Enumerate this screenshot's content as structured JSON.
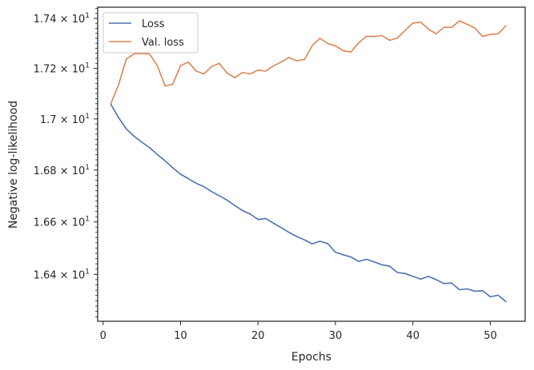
{
  "chart_data": {
    "type": "line",
    "xlabel": "Epochs",
    "ylabel": "Negative log-likelihood",
    "xlim": [
      -0.7,
      54.5
    ],
    "ylim": [
      16.223,
      17.445
    ],
    "y_scale": "log",
    "grid": false,
    "legend_position": "upper left",
    "x_ticks": [
      0,
      10,
      20,
      30,
      40,
      50
    ],
    "x_tick_labels": [
      "0",
      "10",
      "20",
      "30",
      "40",
      "50"
    ],
    "y_ticks": [
      16.4,
      16.6,
      16.8,
      17.0,
      17.2,
      17.4
    ],
    "y_tick_labels": [
      {
        "mantissa": "1.64",
        "exp": "1"
      },
      {
        "mantissa": "1.66",
        "exp": "1"
      },
      {
        "mantissa": "1.68",
        "exp": "1"
      },
      {
        "mantissa": "1.7",
        "exp": "1"
      },
      {
        "mantissa": "1.72",
        "exp": "1"
      },
      {
        "mantissa": "1.74",
        "exp": "1"
      }
    ],
    "x": [
      1,
      2,
      3,
      4,
      5,
      6,
      7,
      8,
      9,
      10,
      11,
      12,
      13,
      14,
      15,
      16,
      17,
      18,
      19,
      20,
      21,
      22,
      23,
      24,
      25,
      26,
      27,
      28,
      29,
      30,
      31,
      32,
      33,
      34,
      35,
      36,
      37,
      38,
      39,
      40,
      41,
      42,
      43,
      44,
      45,
      46,
      47,
      48,
      49,
      50,
      51,
      52
    ],
    "series": [
      {
        "name": "Loss",
        "color": "#4c72b0",
        "values": [
          17.058,
          17.005,
          16.961,
          16.932,
          16.909,
          16.888,
          16.861,
          16.836,
          16.809,
          16.784,
          16.767,
          16.749,
          16.736,
          16.717,
          16.701,
          16.684,
          16.663,
          16.644,
          16.63,
          16.609,
          16.613,
          16.595,
          16.578,
          16.56,
          16.544,
          16.531,
          16.516,
          16.526,
          16.517,
          16.484,
          16.474,
          16.466,
          16.449,
          16.457,
          16.447,
          16.436,
          16.431,
          16.407,
          16.403,
          16.392,
          16.382,
          16.392,
          16.38,
          16.365,
          16.367,
          16.342,
          16.345,
          16.336,
          16.338,
          16.315,
          16.321,
          16.297
        ]
      },
      {
        "name": "Val. loss",
        "color": "#dd8452",
        "values": [
          17.06,
          17.135,
          17.237,
          17.258,
          17.259,
          17.257,
          17.211,
          17.13,
          17.137,
          17.211,
          17.225,
          17.19,
          17.178,
          17.207,
          17.22,
          17.181,
          17.163,
          17.184,
          17.178,
          17.193,
          17.189,
          17.21,
          17.226,
          17.243,
          17.23,
          17.235,
          17.291,
          17.32,
          17.299,
          17.29,
          17.27,
          17.265,
          17.302,
          17.328,
          17.327,
          17.331,
          17.312,
          17.321,
          17.352,
          17.381,
          17.385,
          17.357,
          17.338,
          17.364,
          17.364,
          17.39,
          17.376,
          17.361,
          17.327,
          17.336,
          17.338,
          17.37
        ]
      }
    ]
  }
}
